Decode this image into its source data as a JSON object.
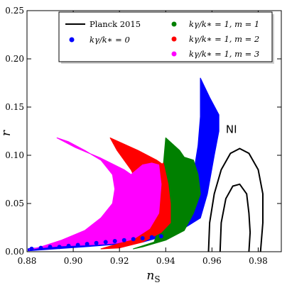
{
  "chart_data": {
    "type": "area",
    "xlabel_main": "n",
    "xlabel_sub": "S",
    "ylabel": "r",
    "xlim": [
      0.88,
      0.99
    ],
    "ylim": [
      0.0,
      0.25
    ],
    "xticks": [
      "0.88",
      "0.90",
      "0.92",
      "0.94",
      "0.96",
      "0.98"
    ],
    "xtick_values": [
      0.88,
      0.9,
      0.92,
      0.94,
      0.96,
      0.98
    ],
    "yticks": [
      "0.00",
      "0.05",
      "0.10",
      "0.15",
      "0.20",
      "0.25"
    ],
    "ytick_values": [
      0.0,
      0.05,
      0.1,
      0.15,
      0.2,
      0.25
    ],
    "annotation": "NI",
    "annotation_pos": [
      0.966,
      0.123
    ],
    "legend": {
      "placement": "top",
      "entries": [
        {
          "label": "Planck 2015",
          "marker": "line",
          "color": "#000000"
        },
        {
          "label": "kγ/k∗ = 0",
          "marker": "dot",
          "color": "#0000ff"
        },
        {
          "label": "kγ/k∗ = 1, m = 1",
          "marker": "dot",
          "color": "#008000"
        },
        {
          "label": "kγ/k∗ = 1, m = 2",
          "marker": "dot",
          "color": "#ff0000"
        },
        {
          "label": "kγ/k∗ = 1, m = 3",
          "marker": "dot",
          "color": "#ff00ff"
        }
      ]
    },
    "series": [
      {
        "color": "#0000ff",
        "polygon": [
          [
            0.8805,
            0.003
          ],
          [
            0.9,
            0.007
          ],
          [
            0.92,
            0.012
          ],
          [
            0.935,
            0.018
          ],
          [
            0.945,
            0.03
          ],
          [
            0.95,
            0.05
          ],
          [
            0.952,
            0.08
          ],
          [
            0.954,
            0.11
          ],
          [
            0.955,
            0.14
          ],
          [
            0.955,
            0.18
          ],
          [
            0.959,
            0.16
          ],
          [
            0.963,
            0.142
          ],
          [
            0.963,
            0.125
          ],
          [
            0.961,
            0.1
          ],
          [
            0.958,
            0.06
          ],
          [
            0.955,
            0.035
          ],
          [
            0.945,
            0.02
          ],
          [
            0.93,
            0.01
          ],
          [
            0.91,
            0.006
          ],
          [
            0.8805,
            0.001
          ]
        ]
      },
      {
        "color": "#008000",
        "polygon": [
          [
            0.926,
            0.003
          ],
          [
            0.935,
            0.01
          ],
          [
            0.938,
            0.03
          ],
          [
            0.939,
            0.06
          ],
          [
            0.939,
            0.09
          ],
          [
            0.94,
            0.118
          ],
          [
            0.946,
            0.105
          ],
          [
            0.948,
            0.098
          ],
          [
            0.952,
            0.095
          ],
          [
            0.954,
            0.08
          ],
          [
            0.955,
            0.06
          ],
          [
            0.952,
            0.04
          ],
          [
            0.948,
            0.022
          ],
          [
            0.94,
            0.012
          ],
          [
            0.93,
            0.005
          ]
        ]
      },
      {
        "color": "#ff0000",
        "polygon": [
          [
            0.912,
            0.003
          ],
          [
            0.925,
            0.012
          ],
          [
            0.932,
            0.03
          ],
          [
            0.936,
            0.05
          ],
          [
            0.938,
            0.07
          ],
          [
            0.938,
            0.09
          ],
          [
            0.939,
            0.092
          ],
          [
            0.941,
            0.07
          ],
          [
            0.942,
            0.05
          ],
          [
            0.942,
            0.03
          ],
          [
            0.938,
            0.02
          ],
          [
            0.93,
            0.01
          ],
          [
            0.92,
            0.004
          ]
        ]
      },
      {
        "color": "#ff0000",
        "polygon": [
          [
            0.916,
            0.118
          ],
          [
            0.928,
            0.105
          ],
          [
            0.936,
            0.095
          ],
          [
            0.939,
            0.09
          ],
          [
            0.941,
            0.07
          ],
          [
            0.942,
            0.045
          ],
          [
            0.94,
            0.03
          ],
          [
            0.936,
            0.02
          ],
          [
            0.932,
            0.03
          ],
          [
            0.93,
            0.05
          ],
          [
            0.928,
            0.07
          ],
          [
            0.925,
            0.085
          ],
          [
            0.919,
            0.105
          ]
        ]
      },
      {
        "color": "#ff00ff",
        "polygon": [
          [
            0.881,
            0.002
          ],
          [
            0.885,
            0.004
          ],
          [
            0.895,
            0.006
          ],
          [
            0.905,
            0.007
          ],
          [
            0.913,
            0.008
          ],
          [
            0.919,
            0.009
          ],
          [
            0.926,
            0.013
          ],
          [
            0.933,
            0.024
          ],
          [
            0.937,
            0.04
          ],
          [
            0.938,
            0.07
          ],
          [
            0.937,
            0.09
          ],
          [
            0.934,
            0.092
          ],
          [
            0.93,
            0.09
          ],
          [
            0.925,
            0.08
          ],
          [
            0.922,
            0.085
          ],
          [
            0.912,
            0.097
          ],
          [
            0.901,
            0.108
          ],
          [
            0.893,
            0.118
          ],
          [
            0.898,
            0.114
          ],
          [
            0.905,
            0.105
          ],
          [
            0.912,
            0.095
          ],
          [
            0.917,
            0.08
          ],
          [
            0.918,
            0.065
          ],
          [
            0.917,
            0.05
          ],
          [
            0.912,
            0.035
          ],
          [
            0.905,
            0.022
          ],
          [
            0.895,
            0.012
          ],
          [
            0.886,
            0.005
          ]
        ]
      }
    ],
    "blue_dots": [
      [
        0.882,
        0.003
      ],
      [
        0.886,
        0.004
      ],
      [
        0.89,
        0.005
      ],
      [
        0.894,
        0.005
      ],
      [
        0.898,
        0.006
      ],
      [
        0.902,
        0.007
      ],
      [
        0.906,
        0.008
      ],
      [
        0.91,
        0.009
      ],
      [
        0.914,
        0.01
      ],
      [
        0.918,
        0.011
      ],
      [
        0.922,
        0.012
      ],
      [
        0.926,
        0.013
      ],
      [
        0.93,
        0.014
      ],
      [
        0.934,
        0.015
      ],
      [
        0.938,
        0.016
      ]
    ],
    "contours": [
      {
        "level": "outer",
        "color": "#000000",
        "points": [
          [
            0.9585,
            0.0
          ],
          [
            0.959,
            0.03
          ],
          [
            0.961,
            0.06
          ],
          [
            0.964,
            0.085
          ],
          [
            0.968,
            0.102
          ],
          [
            0.972,
            0.107
          ],
          [
            0.976,
            0.102
          ],
          [
            0.98,
            0.085
          ],
          [
            0.982,
            0.06
          ],
          [
            0.982,
            0.03
          ],
          [
            0.981,
            0.0
          ]
        ]
      },
      {
        "level": "inner",
        "color": "#000000",
        "points": [
          [
            0.9635,
            0.0
          ],
          [
            0.964,
            0.03
          ],
          [
            0.966,
            0.055
          ],
          [
            0.969,
            0.068
          ],
          [
            0.972,
            0.07
          ],
          [
            0.975,
            0.06
          ],
          [
            0.976,
            0.04
          ],
          [
            0.9765,
            0.02
          ],
          [
            0.976,
            0.0
          ]
        ]
      }
    ]
  }
}
